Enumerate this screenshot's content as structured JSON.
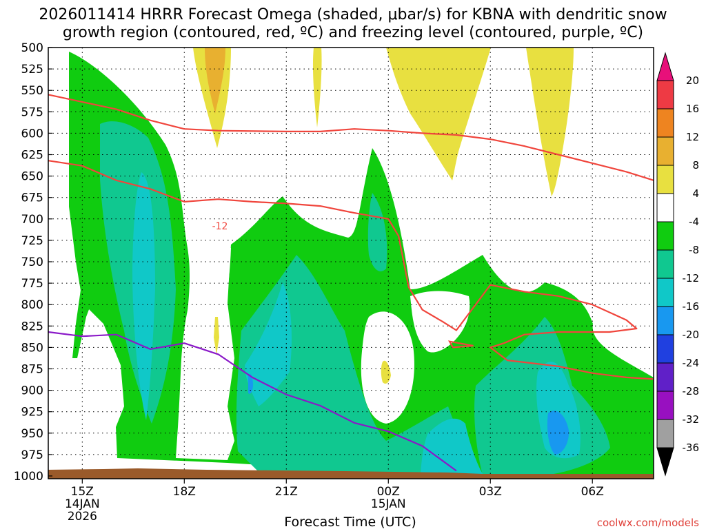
{
  "title": {
    "line1": "2026011414 HRRR Forecast Omega (shaded, μbar/s) for KBNA with dendritic snow",
    "line2": "growth region (contoured, red, ºC) and freezing level (contoured, purple, ºC)"
  },
  "credit": "coolwx.com/models",
  "colors": {
    "ground": "#9a5a2a",
    "dendritic_contour": "#f0453c",
    "freezing_contour": "#8a18c8",
    "grid": "#000000"
  },
  "chart_data": {
    "type": "heatmap",
    "title": "2026011414 HRRR Forecast Omega (shaded, μbar/s) for KBNA with dendritic snow growth region (contoured, red, ºC) and freezing level (contoured, purple, ºC)",
    "xlabel": "Forecast Time (UTC)",
    "ylabel": "",
    "x_ticks": [
      {
        "label": "15Z",
        "sub": [
          "14JAN",
          "2026"
        ],
        "hour": 15
      },
      {
        "label": "18Z",
        "sub": [],
        "hour": 18
      },
      {
        "label": "21Z",
        "sub": [],
        "hour": 21
      },
      {
        "label": "00Z",
        "sub": [
          "15JAN"
        ],
        "hour": 24
      },
      {
        "label": "03Z",
        "sub": [],
        "hour": 27
      },
      {
        "label": "06Z",
        "sub": [],
        "hour": 30
      }
    ],
    "xlim_hours": [
      14.0,
      31.8
    ],
    "y_ticks": [
      500,
      525,
      550,
      575,
      600,
      625,
      650,
      675,
      700,
      725,
      750,
      775,
      800,
      825,
      850,
      875,
      900,
      925,
      950,
      975,
      1000
    ],
    "ylim_hPa": [
      500,
      1000
    ],
    "grid": true,
    "colorbar": {
      "labels": [
        "20",
        "16",
        "12",
        "8",
        "4",
        "-4",
        "-8",
        "-12",
        "-16",
        "-20",
        "-24",
        "-28",
        "-32",
        "-36"
      ],
      "colors": [
        "#ee3a44",
        "#ee8420",
        "#e8b030",
        "#e8e040",
        "#ffffff",
        "#10cc10",
        "#10c890",
        "#10c8c8",
        "#1898f0",
        "#2040e0",
        "#6020c8",
        "#9810c0",
        "#a0a0a0"
      ],
      "top_arrow_color": "#e8107a",
      "bottom_arrow_color": "#000000"
    },
    "contour_label": "-12",
    "series": [
      {
        "name": "dendritic upper (-18)",
        "color": "#f0453c",
        "points": [
          [
            14.0,
            555
          ],
          [
            16.0,
            572
          ],
          [
            17.0,
            585
          ],
          [
            18.0,
            595
          ],
          [
            19.0,
            597
          ],
          [
            21.0,
            598
          ],
          [
            22.0,
            598
          ],
          [
            23.0,
            595
          ],
          [
            24.0,
            597
          ],
          [
            25.0,
            600
          ],
          [
            26.0,
            602
          ],
          [
            27.0,
            607
          ],
          [
            28.0,
            615
          ],
          [
            29.0,
            625
          ],
          [
            30.0,
            635
          ],
          [
            31.0,
            645
          ],
          [
            31.8,
            655
          ]
        ]
      },
      {
        "name": "dendritic lower (-12)",
        "color": "#f0453c",
        "points": [
          [
            14.0,
            632
          ],
          [
            15.0,
            638
          ],
          [
            16.0,
            655
          ],
          [
            17.0,
            665
          ],
          [
            18.0,
            680
          ],
          [
            19.0,
            677
          ],
          [
            20.0,
            680
          ],
          [
            21.0,
            682
          ],
          [
            22.0,
            685
          ],
          [
            23.0,
            693
          ],
          [
            24.0,
            700
          ],
          [
            24.3,
            720
          ],
          [
            24.6,
            780
          ],
          [
            25.0,
            806
          ],
          [
            25.6,
            820
          ],
          [
            26.0,
            830
          ],
          [
            27.0,
            777
          ],
          [
            28.0,
            785
          ],
          [
            29.0,
            790
          ],
          [
            30.0,
            800
          ],
          [
            31.0,
            818
          ],
          [
            31.3,
            828
          ],
          [
            30.5,
            832
          ],
          [
            29.0,
            832
          ],
          [
            28.0,
            835
          ],
          [
            27.4,
            845
          ],
          [
            27.0,
            850
          ],
          [
            27.5,
            865
          ],
          [
            29.0,
            872
          ],
          [
            30.0,
            880
          ],
          [
            31.0,
            885
          ],
          [
            31.8,
            887
          ]
        ]
      },
      {
        "name": "freezing level (0)",
        "color": "#8a18c8",
        "points": [
          [
            14.0,
            832
          ],
          [
            15.0,
            837
          ],
          [
            16.0,
            835
          ],
          [
            17.0,
            852
          ],
          [
            18.0,
            845
          ],
          [
            19.0,
            858
          ],
          [
            20.0,
            885
          ],
          [
            21.0,
            905
          ],
          [
            22.0,
            918
          ],
          [
            23.0,
            938
          ],
          [
            24.0,
            948
          ],
          [
            25.0,
            965
          ],
          [
            26.0,
            994
          ]
        ]
      }
    ],
    "shaded_regions": [
      {
        "value": "-4 to -8",
        "color": "#10cc10",
        "description": "main ascent band"
      },
      {
        "value": "-8 to -12",
        "color": "#10c890"
      },
      {
        "value": "-12 to -16",
        "color": "#10c8c8"
      },
      {
        "value": "-16 to -20",
        "color": "#1898f0"
      },
      {
        "value": "4 to 8",
        "color": "#e8e040"
      },
      {
        "value": "8 to 12",
        "color": "#e8b030"
      }
    ]
  }
}
